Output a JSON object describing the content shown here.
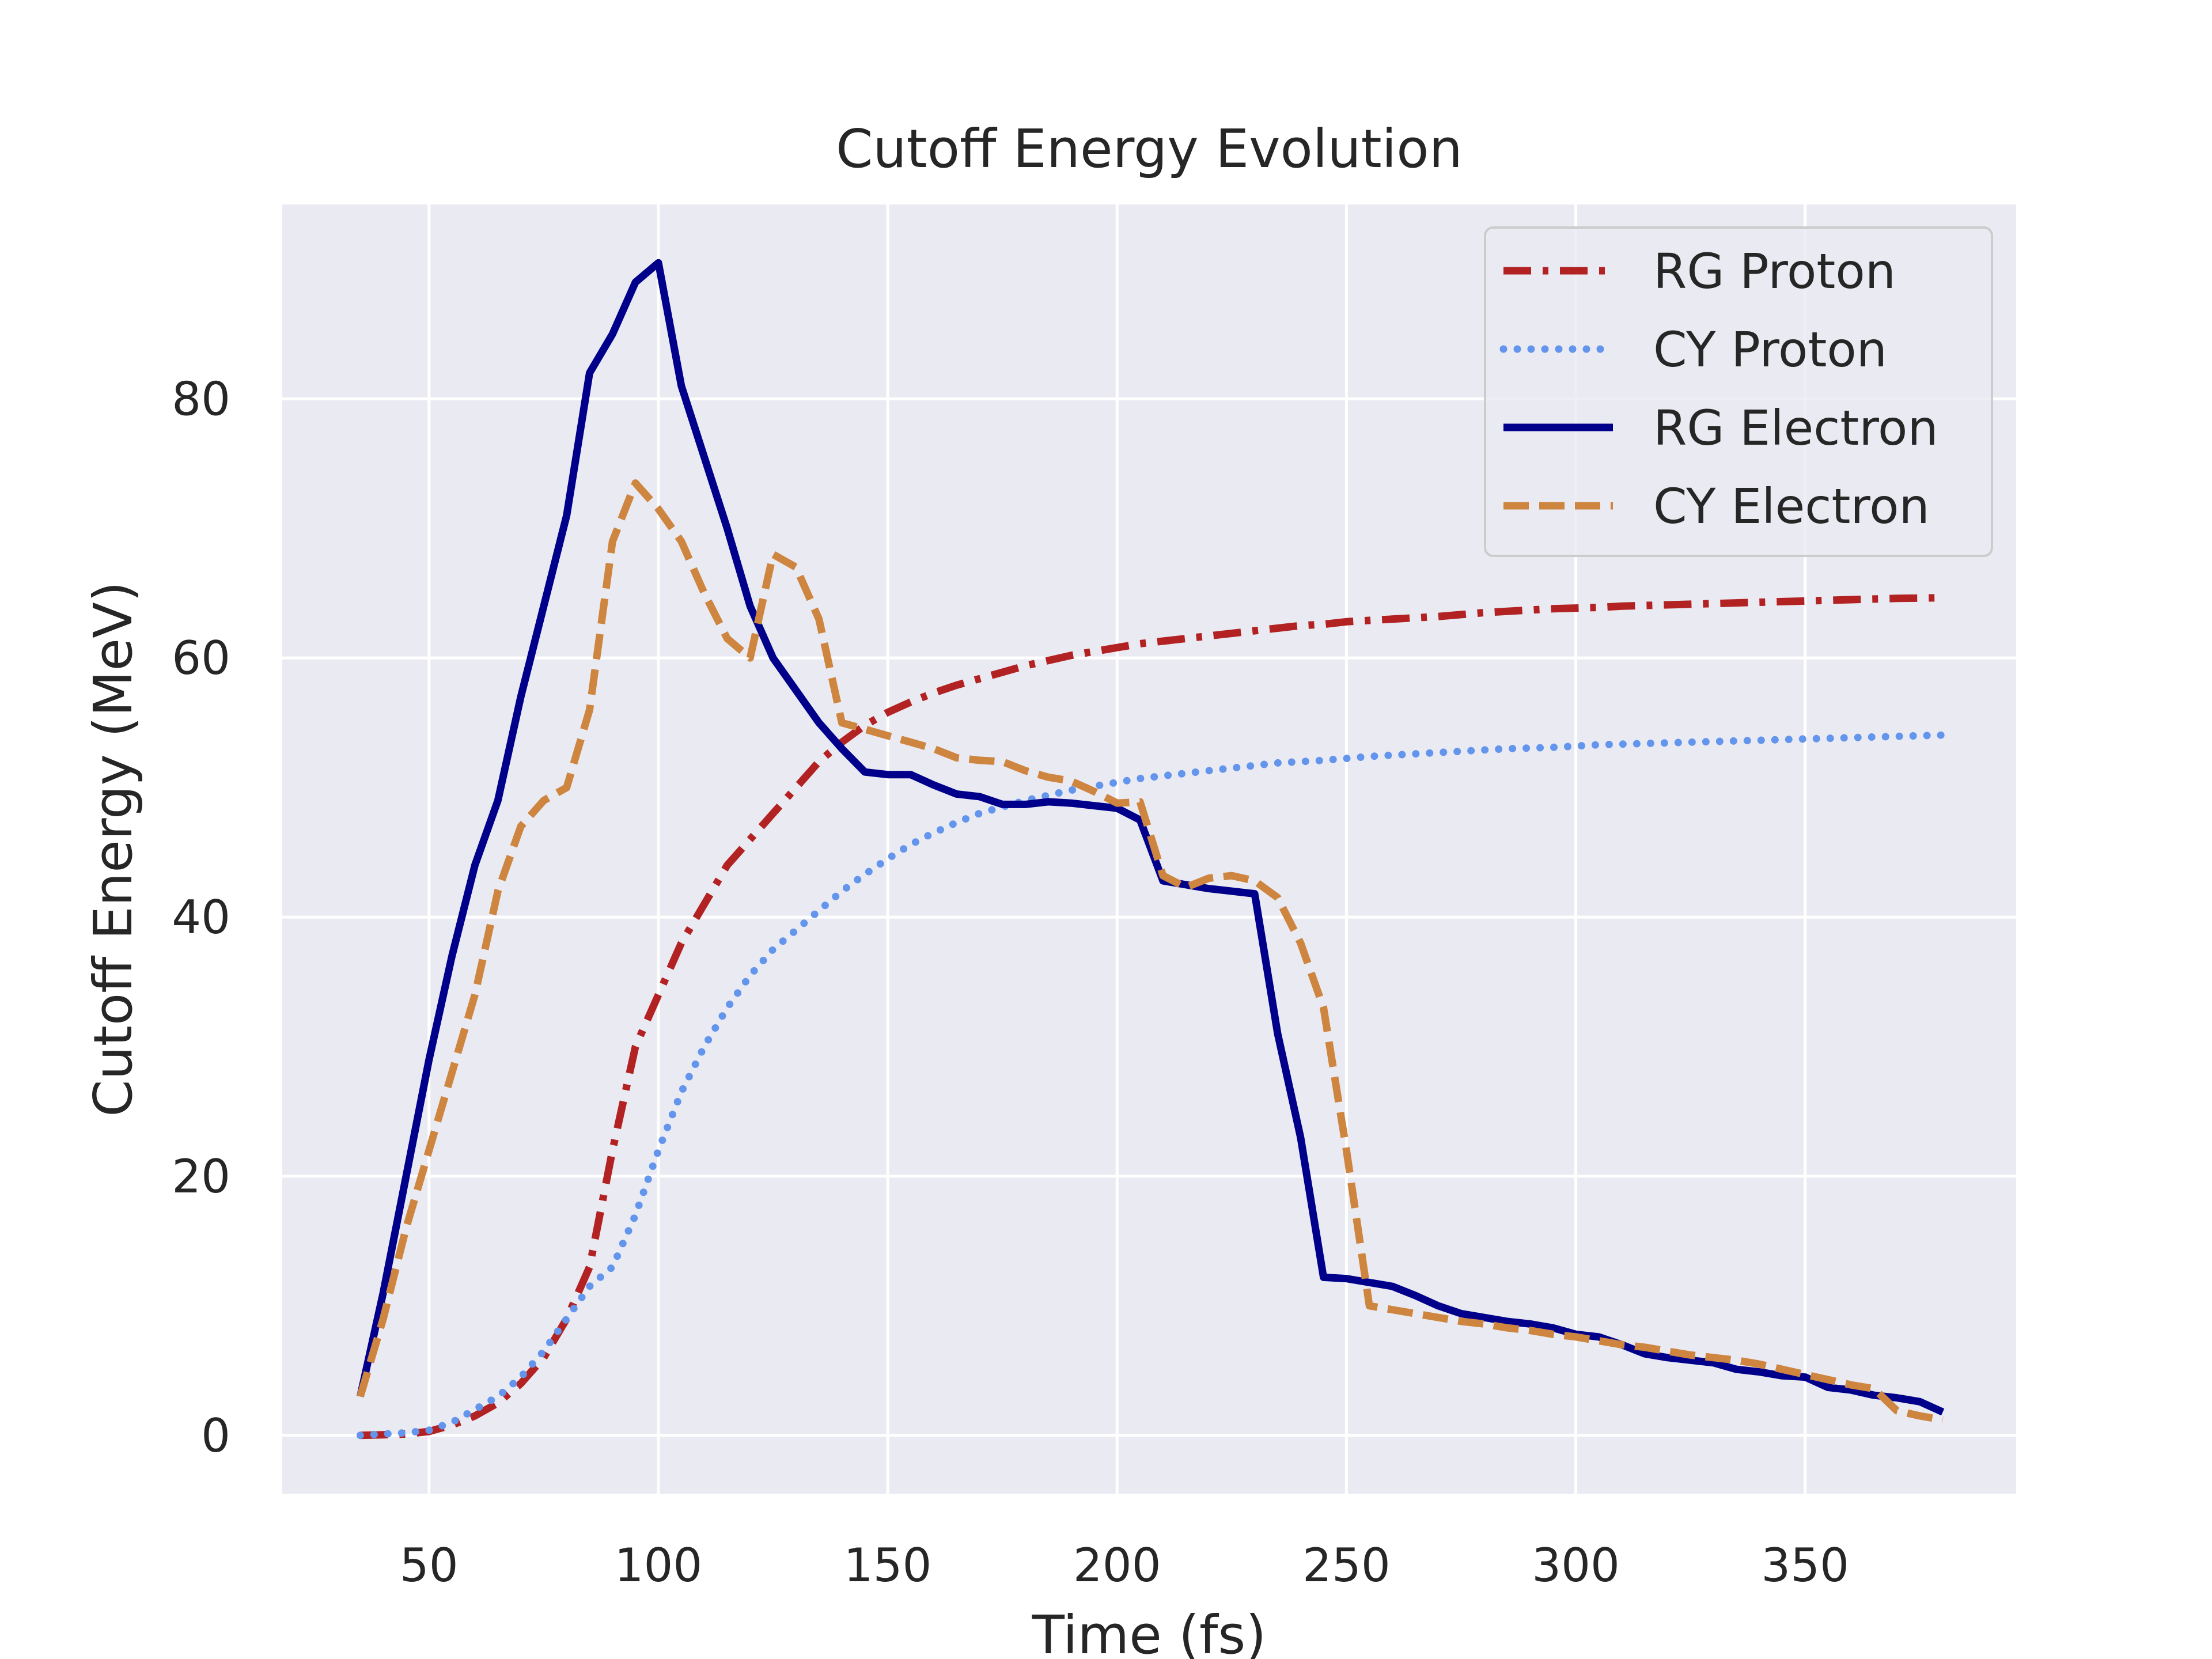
{
  "chart_data": {
    "type": "line",
    "title": "Cutoff Energy Evolution",
    "xlabel": "Time (fs)",
    "ylabel": "Cutoff Energy (MeV)",
    "xlim": [
      18,
      396
    ],
    "ylim": [
      -4.5,
      95
    ],
    "xticks": [
      50,
      100,
      150,
      200,
      250,
      300,
      350
    ],
    "yticks": [
      0,
      20,
      40,
      60,
      80
    ],
    "grid": true,
    "legend_position": "top-right",
    "series": [
      {
        "name": "RG Proton",
        "color": "#b22222",
        "style": "dashdot",
        "x": [
          35,
          40,
          45,
          50,
          55,
          60,
          65,
          70,
          75,
          80,
          85,
          90,
          95,
          100,
          105,
          110,
          115,
          120,
          125,
          130,
          135,
          140,
          145,
          150,
          155,
          160,
          165,
          170,
          175,
          180,
          185,
          190,
          195,
          200,
          205,
          210,
          215,
          220,
          225,
          230,
          235,
          240,
          245,
          250,
          255,
          260,
          265,
          270,
          275,
          280,
          285,
          290,
          295,
          300,
          305,
          310,
          315,
          320,
          325,
          330,
          335,
          340,
          345,
          350,
          355,
          360,
          365,
          370,
          375,
          380
        ],
        "y": [
          0,
          0.05,
          0.1,
          0.3,
          0.8,
          1.5,
          2.5,
          4,
          6,
          9,
          13,
          22,
          30,
          34,
          38,
          41,
          44,
          46,
          48,
          50,
          52,
          53.5,
          54.8,
          55.8,
          56.6,
          57.3,
          57.9,
          58.4,
          58.9,
          59.4,
          59.8,
          60.2,
          60.5,
          60.8,
          61.1,
          61.3,
          61.5,
          61.7,
          61.9,
          62.1,
          62.3,
          62.5,
          62.6,
          62.8,
          62.9,
          63.0,
          63.1,
          63.2,
          63.35,
          63.5,
          63.6,
          63.7,
          63.8,
          63.85,
          63.9,
          64.0,
          64.05,
          64.1,
          64.15,
          64.2,
          64.25,
          64.3,
          64.35,
          64.4,
          64.45,
          64.5,
          64.55,
          64.6,
          64.62,
          64.65
        ]
      },
      {
        "name": "CY Proton",
        "color": "#6495ed",
        "style": "dotted",
        "x": [
          35,
          40,
          45,
          50,
          55,
          60,
          65,
          70,
          75,
          80,
          85,
          90,
          95,
          100,
          105,
          110,
          115,
          120,
          125,
          130,
          135,
          140,
          145,
          150,
          155,
          160,
          165,
          170,
          175,
          180,
          185,
          190,
          195,
          200,
          205,
          210,
          215,
          220,
          225,
          230,
          235,
          240,
          245,
          250,
          255,
          260,
          265,
          270,
          275,
          280,
          285,
          290,
          295,
          300,
          305,
          310,
          315,
          320,
          325,
          330,
          335,
          340,
          345,
          350,
          355,
          360,
          365,
          370,
          375,
          380
        ],
        "y": [
          0,
          0.1,
          0.2,
          0.4,
          1,
          2,
          3,
          4.5,
          6.5,
          9,
          11.5,
          13,
          17,
          22,
          26.5,
          30,
          33,
          35.5,
          37.5,
          39,
          40.5,
          42,
          43.3,
          44.5,
          45.6,
          46.5,
          47.3,
          48,
          48.5,
          49,
          49.4,
          49.8,
          50.1,
          50.4,
          50.7,
          50.9,
          51.1,
          51.3,
          51.5,
          51.7,
          51.9,
          52.0,
          52.1,
          52.25,
          52.4,
          52.5,
          52.6,
          52.7,
          52.8,
          52.9,
          53.0,
          53.05,
          53.1,
          53.2,
          53.3,
          53.35,
          53.4,
          53.45,
          53.5,
          53.55,
          53.6,
          53.65,
          53.7,
          53.75,
          53.8,
          53.85,
          53.9,
          53.95,
          54.0,
          54.05
        ]
      },
      {
        "name": "RG Electron",
        "color": "#00008b",
        "style": "solid",
        "x": [
          35,
          40,
          45,
          50,
          55,
          60,
          65,
          70,
          75,
          80,
          85,
          90,
          95,
          100,
          105,
          110,
          115,
          120,
          125,
          130,
          135,
          140,
          145,
          150,
          155,
          160,
          165,
          170,
          175,
          180,
          185,
          190,
          195,
          200,
          205,
          210,
          215,
          220,
          225,
          230,
          235,
          240,
          245,
          250,
          255,
          260,
          265,
          270,
          275,
          280,
          285,
          290,
          295,
          300,
          305,
          310,
          315,
          320,
          325,
          330,
          335,
          340,
          345,
          350,
          355,
          360,
          365,
          370,
          375,
          380
        ],
        "y": [
          3,
          11,
          20,
          29,
          37,
          44,
          49,
          57,
          64,
          71,
          82,
          85,
          89,
          90.5,
          81,
          75.5,
          70,
          64,
          60,
          57.5,
          55,
          53,
          51.2,
          51,
          51,
          50.2,
          49.5,
          49.3,
          48.7,
          48.7,
          48.9,
          48.8,
          48.6,
          48.4,
          47.5,
          42.8,
          42.5,
          42.2,
          42,
          41.8,
          31,
          23,
          12.2,
          12.1,
          11.8,
          11.5,
          10.8,
          10,
          9.4,
          9.1,
          8.8,
          8.6,
          8.3,
          7.8,
          7.6,
          7,
          6.3,
          6,
          5.8,
          5.6,
          5.1,
          4.9,
          4.6,
          4.5,
          3.7,
          3.5,
          3.1,
          2.9,
          2.6,
          1.8
        ]
      },
      {
        "name": "CY Electron",
        "color": "#cd853f",
        "style": "dashed",
        "x": [
          35,
          40,
          45,
          50,
          55,
          60,
          65,
          70,
          75,
          80,
          85,
          90,
          95,
          100,
          105,
          110,
          115,
          120,
          125,
          130,
          135,
          140,
          145,
          150,
          155,
          160,
          165,
          170,
          175,
          180,
          185,
          190,
          195,
          200,
          205,
          210,
          215,
          220,
          225,
          230,
          235,
          240,
          245,
          250,
          255,
          260,
          265,
          270,
          275,
          280,
          285,
          290,
          295,
          300,
          305,
          310,
          315,
          320,
          325,
          330,
          335,
          340,
          345,
          350,
          355,
          360,
          365,
          370,
          375,
          380
        ],
        "y": [
          3,
          9,
          16,
          22,
          28,
          34,
          42,
          47,
          49,
          50,
          56,
          69,
          73.5,
          71.5,
          69,
          65,
          61.5,
          60,
          68,
          67,
          63,
          55,
          54.5,
          54,
          53.5,
          53,
          52.3,
          52.1,
          52,
          51.3,
          50.8,
          50.5,
          49.7,
          48.8,
          48.9,
          43.2,
          42.3,
          43,
          43.2,
          42.8,
          41.5,
          38,
          33,
          22,
          10,
          9.7,
          9.4,
          9.1,
          8.8,
          8.6,
          8.3,
          8.1,
          7.8,
          7.6,
          7.3,
          7,
          6.8,
          6.5,
          6.2,
          6,
          5.8,
          5.5,
          5.1,
          4.7,
          4.3,
          3.9,
          3.6,
          1.9,
          1.5,
          1.2
        ]
      }
    ]
  }
}
